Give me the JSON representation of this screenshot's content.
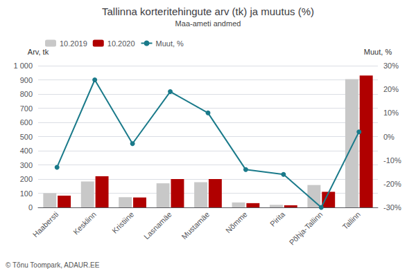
{
  "chart_data": {
    "type": "bar",
    "title": "Tallinna korteritehingute arv (tk) ja muutus (%)",
    "subtitle": "Maa-ameti andmed",
    "ylabel": "Arv, tk",
    "y2label": "Muut, %",
    "annotations": [
      "© Tõnu Toompark, ADAUR.EE"
    ],
    "categories": [
      "Haabersti",
      "Kesklinn",
      "Kristiine",
      "Lasnamäe",
      "Mustamäe",
      "Nõmme",
      "Pirita",
      "Põhja-Tallinn",
      "Tallinn"
    ],
    "series": [
      {
        "name": "10.2019",
        "color": "#c8c8c8",
        "values": [
          100,
          183,
          72,
          170,
          178,
          35,
          18,
          158,
          905
        ]
      },
      {
        "name": "10.2020",
        "color": "#b00000",
        "values": [
          83,
          220,
          70,
          200,
          200,
          30,
          15,
          110,
          930
        ]
      },
      {
        "name": "Muut, %",
        "color": "#1a7a8a",
        "type": "line",
        "axis": "y2",
        "marker": "circle",
        "values": [
          -13,
          24,
          -3,
          19,
          10,
          -14,
          -16,
          -30,
          2
        ]
      }
    ],
    "ylim": [
      0,
      1000
    ],
    "yticks": [
      0,
      100,
      200,
      300,
      400,
      500,
      600,
      700,
      800,
      900,
      {
        "value": 1000,
        "label": "1 000"
      }
    ],
    "y2lim": [
      -30,
      30
    ],
    "y2ticks": [
      {
        "value": -30,
        "label": "-30%"
      },
      {
        "value": -20,
        "label": "-20%"
      },
      {
        "value": -10,
        "label": "-10%"
      },
      {
        "value": 0,
        "label": "0%"
      },
      {
        "value": 10,
        "label": "10%"
      },
      {
        "value": 20,
        "label": "20%"
      },
      {
        "value": 30,
        "label": "30%"
      }
    ],
    "grid": true,
    "legend": "upper left"
  }
}
